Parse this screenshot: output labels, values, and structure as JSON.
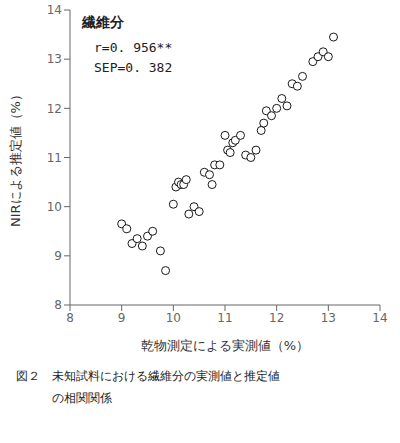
{
  "chart_data": {
    "type": "scatter",
    "title": "繊維分",
    "xlabel": "乾物測定による実測値（%）",
    "ylabel": "NIRによる推定値（%）",
    "annotations": [
      "r=0. 956**",
      "SEP=0. 382"
    ],
    "caption": [
      "図２　未知試料における繊維分の実測値と推定値",
      "　　　の相関関係"
    ],
    "x": [
      9.0,
      9.1,
      9.2,
      9.3,
      9.4,
      9.5,
      9.6,
      9.75,
      9.85,
      10.0,
      10.05,
      10.1,
      10.15,
      10.2,
      10.25,
      10.3,
      10.4,
      10.5,
      10.6,
      10.7,
      10.75,
      10.8,
      10.9,
      11.0,
      11.05,
      11.1,
      11.15,
      11.2,
      11.3,
      11.4,
      11.5,
      11.6,
      11.7,
      11.75,
      11.8,
      11.9,
      12.0,
      12.1,
      12.2,
      12.3,
      12.4,
      12.5,
      12.7,
      12.8,
      12.9,
      13.0,
      13.1
    ],
    "values": [
      9.65,
      9.55,
      9.25,
      9.35,
      9.2,
      9.4,
      9.5,
      9.1,
      8.7,
      10.05,
      10.4,
      10.5,
      10.45,
      10.45,
      10.55,
      9.85,
      10.0,
      9.9,
      10.7,
      10.65,
      10.45,
      10.85,
      10.85,
      11.45,
      11.15,
      11.1,
      11.3,
      11.35,
      11.45,
      11.05,
      11.0,
      11.15,
      11.55,
      11.7,
      11.95,
      11.85,
      12.0,
      12.2,
      12.05,
      12.5,
      12.45,
      12.65,
      12.95,
      13.05,
      13.15,
      13.05,
      13.45
    ],
    "color": "black",
    "marker": "open_circle",
    "xlim": [
      8,
      14
    ],
    "ylim": [
      8,
      14
    ],
    "xticks": [
      8,
      9,
      10,
      11,
      12,
      13,
      14
    ],
    "yticks": [
      8,
      9,
      10,
      11,
      12,
      13,
      14
    ],
    "grid": false
  }
}
